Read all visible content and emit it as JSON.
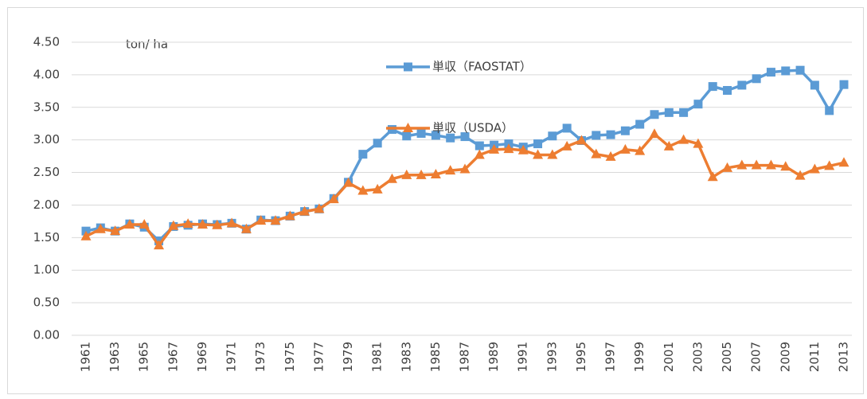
{
  "chart_data": {
    "type": "line",
    "y_label": "ton/ ha",
    "categories": [
      "1961",
      null,
      "1963",
      null,
      "1965",
      null,
      "1967",
      null,
      "1969",
      null,
      "1971",
      null,
      "1973",
      null,
      "1975",
      null,
      "1977",
      null,
      "1979",
      null,
      "1981",
      null,
      "1983",
      null,
      "1985",
      null,
      "1987",
      null,
      "1989",
      null,
      "1991",
      null,
      "1993",
      null,
      "1995",
      null,
      "1997",
      null,
      "1999",
      null,
      "2001",
      null,
      "2003",
      null,
      "2005",
      null,
      "2007",
      null,
      "2009",
      null,
      "2011",
      null,
      "2013"
    ],
    "series": [
      {
        "name": "単収（FAOSTAT）",
        "color": "#5b9bd5",
        "marker": "square",
        "values": [
          1.6,
          1.65,
          1.6,
          1.71,
          1.66,
          1.45,
          1.67,
          1.69,
          1.71,
          1.7,
          1.72,
          1.63,
          1.77,
          1.76,
          1.83,
          1.9,
          1.94,
          2.1,
          2.35,
          2.78,
          2.95,
          3.16,
          3.06,
          3.1,
          3.07,
          3.03,
          3.05,
          2.91,
          2.92,
          2.94,
          2.89,
          2.94,
          3.06,
          3.18,
          2.99,
          3.07,
          3.08,
          3.14,
          3.24,
          3.39,
          3.42,
          3.42,
          3.55,
          3.82,
          3.76,
          3.84,
          3.94,
          4.04,
          4.06,
          4.07,
          3.84,
          3.45,
          3.85
        ]
      },
      {
        "name": "単収（USDA）",
        "color": "#ed7d31",
        "marker": "triangle",
        "values": [
          1.52,
          1.63,
          1.6,
          1.7,
          1.7,
          1.38,
          1.68,
          1.71,
          1.7,
          1.69,
          1.72,
          1.63,
          1.76,
          1.76,
          1.83,
          1.9,
          1.94,
          2.09,
          2.34,
          2.22,
          2.24,
          2.4,
          2.46,
          2.46,
          2.47,
          2.53,
          2.55,
          2.77,
          2.85,
          2.86,
          2.84,
          2.77,
          2.77,
          2.9,
          2.99,
          2.78,
          2.74,
          2.85,
          2.83,
          3.09,
          2.9,
          3.0,
          2.94,
          2.43,
          2.57,
          2.61,
          2.61,
          2.61,
          2.59,
          2.45,
          2.55,
          2.6,
          2.65
        ]
      }
    ],
    "ylim": [
      0,
      4.5
    ],
    "yticks": [
      {
        "value": 0,
        "label": "0.00"
      },
      {
        "value": 0.5,
        "label": "0.50"
      },
      {
        "value": 1,
        "label": "1.00"
      },
      {
        "value": 1.5,
        "label": "1.50"
      },
      {
        "value": 2,
        "label": "2.00"
      },
      {
        "value": 2.5,
        "label": "2.50"
      },
      {
        "value": 3,
        "label": "3.00"
      },
      {
        "value": 3.5,
        "label": "3.50"
      },
      {
        "value": 4,
        "label": "4.00"
      },
      {
        "value": 4.5,
        "label": "4.50"
      }
    ],
    "grid": true
  }
}
